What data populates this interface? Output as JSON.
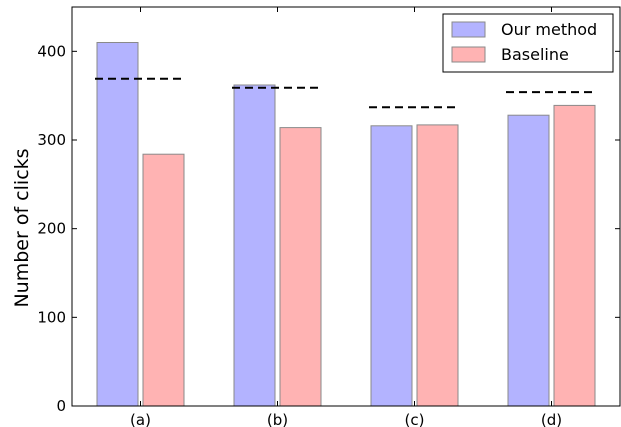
{
  "chart_data": {
    "type": "bar",
    "categories": [
      "(a)",
      "(b)",
      "(c)",
      "(d)"
    ],
    "series": [
      {
        "name": "Our method",
        "values": [
          410,
          362,
          316,
          328
        ],
        "color": "#b3b3ff"
      },
      {
        "name": "Baseline",
        "values": [
          284,
          314,
          317,
          339
        ],
        "color": "#ffb3b3"
      }
    ],
    "reference_lines": [
      369,
      359,
      337,
      354
    ],
    "ylabel": "Number of clicks",
    "xlabel": "",
    "ylim": [
      0,
      450
    ],
    "yticks": [
      0,
      100,
      200,
      300,
      400
    ],
    "grid": false,
    "legend_position": "top-right"
  }
}
